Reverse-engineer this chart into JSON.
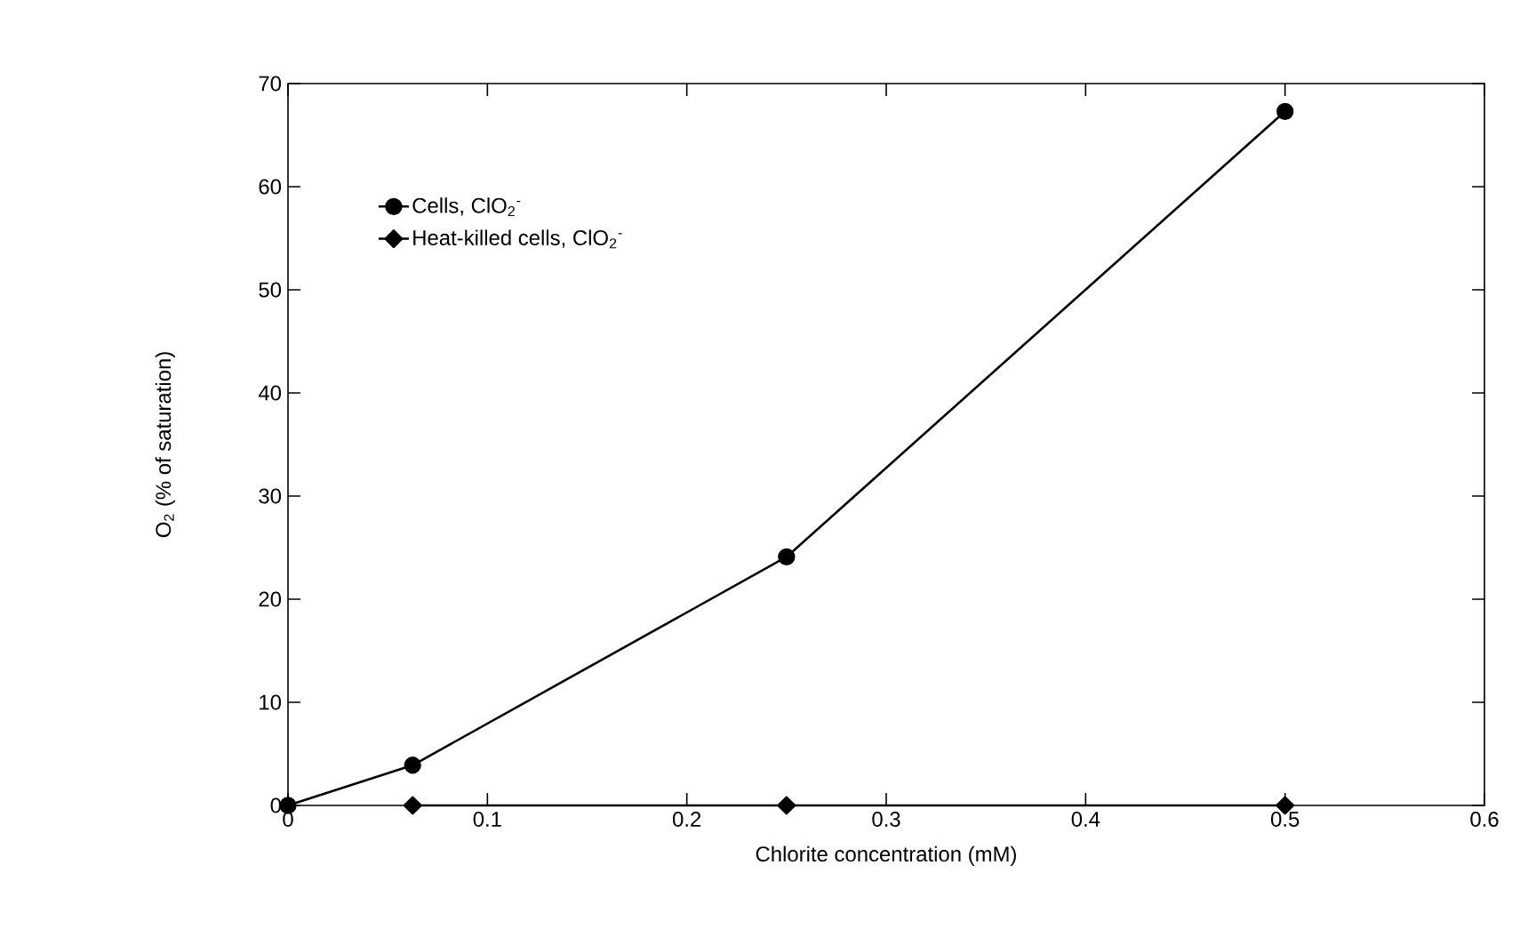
{
  "chart_data": {
    "type": "line",
    "xlabel": "Chlorite concentration (mM)",
    "ylabel": "O$_{2}$ (% of saturation)",
    "xlim": [
      0,
      0.6
    ],
    "xticks": [
      0,
      0.1,
      0.2,
      0.3,
      0.4,
      0.5,
      0.6
    ],
    "ylim": [
      0,
      70
    ],
    "yticks": [
      0,
      10,
      20,
      30,
      40,
      50,
      60,
      70
    ],
    "legend": "top left",
    "grid": false,
    "line_style": "solid",
    "series": [
      {
        "name": "Cells, ClO$_{2}$$^{-}$",
        "color": "#000000",
        "marker": "circle",
        "x": [
          0,
          0.0625,
          0.25,
          0.5
        ],
        "values": [
          0,
          3.9,
          24.1,
          67.3
        ]
      },
      {
        "name": "Heat-killed cells, ClO$_{2}$$^{-}$",
        "color": "#000000",
        "marker": "diamond",
        "x": [
          0.0625,
          0.25,
          0.5
        ],
        "values": [
          0,
          0,
          0
        ]
      }
    ]
  }
}
